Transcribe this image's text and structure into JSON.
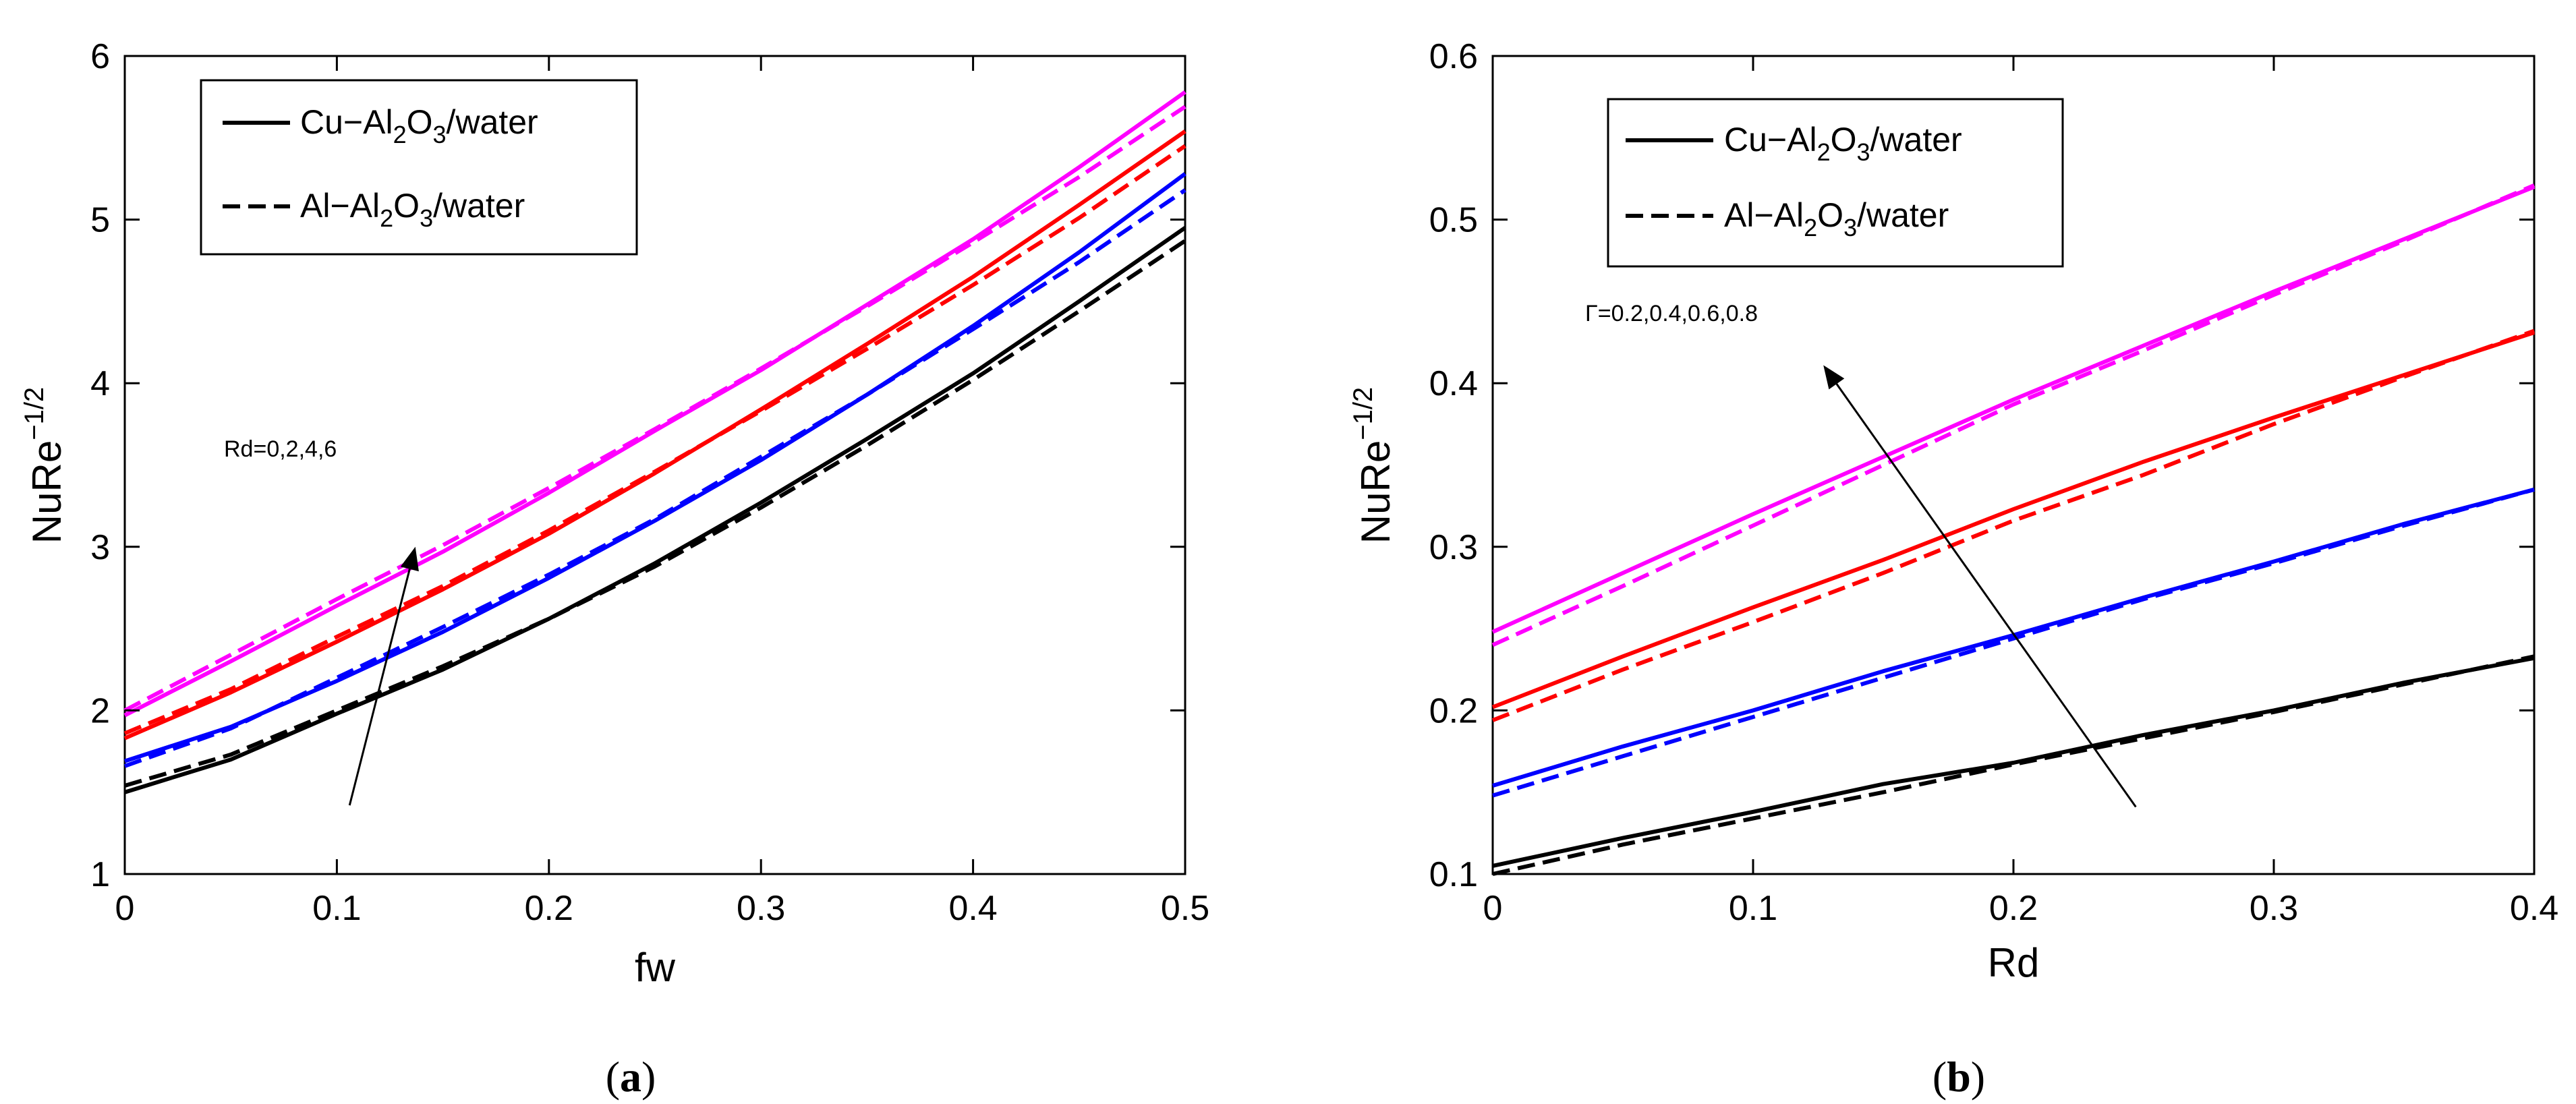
{
  "chart_data": [
    {
      "type": "line",
      "panel": "a",
      "panel_label": {
        "open": "(",
        "letter": "a",
        "close": ")"
      },
      "xlabel": "fw",
      "ylabel": {
        "base": "NuRe",
        "sup": "−1/2"
      },
      "xlim": [
        0,
        0.5
      ],
      "ylim": [
        1,
        6
      ],
      "xticks": [
        0,
        0.1,
        0.2,
        0.3,
        0.4,
        0.5
      ],
      "xtick_labels": [
        "0",
        "0.1",
        "0.2",
        "0.3",
        "0.4",
        "0.5"
      ],
      "yticks": [
        1,
        2,
        3,
        4,
        5,
        6
      ],
      "ytick_labels": [
        "1",
        "2",
        "3",
        "4",
        "5",
        "6"
      ],
      "legend": [
        {
          "style": "solid",
          "prefix": "Cu−Al",
          "sub1": "2",
          "mid": "O",
          "sub2": "3",
          "suffix": "/water"
        },
        {
          "style": "dashed",
          "prefix": "Al−Al",
          "sub1": "2",
          "mid": "O",
          "sub2": "3",
          "suffix": "/water"
        }
      ],
      "legend_position": "top-left",
      "annotation": {
        "text": "Rd=0,2,4,6",
        "arrow_from": [
          0.106,
          1.42
        ],
        "arrow_to": [
          0.137,
          3.0
        ]
      },
      "x": [
        0,
        0.05,
        0.1,
        0.15,
        0.2,
        0.25,
        0.3,
        0.35,
        0.4,
        0.45,
        0.5
      ],
      "series": [
        {
          "name": "Rd=0 Cu-Al2O3/water",
          "color": "#000000",
          "style": "solid",
          "values": [
            1.5,
            1.7,
            1.98,
            2.25,
            2.56,
            2.9,
            3.27,
            3.66,
            4.06,
            4.5,
            4.95
          ]
        },
        {
          "name": "Rd=0 Al-Al2O3/water",
          "color": "#000000",
          "style": "dashed",
          "values": [
            1.54,
            1.73,
            2.0,
            2.27,
            2.56,
            2.88,
            3.24,
            3.62,
            4.02,
            4.44,
            4.87
          ]
        },
        {
          "name": "Rd=2 Cu-Al2O3/water",
          "color": "#0000ff",
          "style": "solid",
          "values": [
            1.69,
            1.9,
            2.18,
            2.48,
            2.81,
            3.16,
            3.53,
            3.93,
            4.35,
            4.8,
            5.28
          ]
        },
        {
          "name": "Rd=2 Al-Al2O3/water",
          "color": "#0000ff",
          "style": "dashed",
          "values": [
            1.66,
            1.89,
            2.2,
            2.51,
            2.83,
            3.17,
            3.55,
            3.93,
            4.33,
            4.74,
            5.18
          ]
        },
        {
          "name": "Rd=4 Cu-Al2O3/water",
          "color": "#ff0000",
          "style": "solid",
          "values": [
            1.83,
            2.11,
            2.42,
            2.74,
            3.08,
            3.45,
            3.84,
            4.24,
            4.65,
            5.09,
            5.54
          ]
        },
        {
          "name": "Rd=4 Al-Al2O3/water",
          "color": "#ff0000",
          "style": "dashed",
          "values": [
            1.86,
            2.13,
            2.45,
            2.76,
            3.1,
            3.46,
            3.83,
            4.21,
            4.6,
            5.01,
            5.45
          ]
        },
        {
          "name": "Rd=6 Cu-Al2O3/water",
          "color": "#ff00ff",
          "style": "solid",
          "values": [
            1.97,
            2.3,
            2.64,
            2.97,
            3.33,
            3.71,
            4.08,
            4.48,
            4.88,
            5.32,
            5.78
          ]
        },
        {
          "name": "Rd=6 Al-Al2O3/water",
          "color": "#ff00ff",
          "style": "dashed",
          "values": [
            2.0,
            2.34,
            2.68,
            3.01,
            3.36,
            3.72,
            4.09,
            4.47,
            4.86,
            5.26,
            5.69
          ]
        }
      ]
    },
    {
      "type": "line",
      "panel": "b",
      "panel_label": {
        "open": "(",
        "letter": "b",
        "close": ")"
      },
      "xlabel": "Rd",
      "ylabel": {
        "base": "NuRe",
        "sup": "−1/2"
      },
      "xlim": [
        0,
        0.4
      ],
      "ylim": [
        0.1,
        0.6
      ],
      "xticks": [
        0,
        0.1,
        0.2,
        0.3,
        0.4
      ],
      "xtick_labels": [
        "0",
        "0.1",
        "0.2",
        "0.3",
        "0.4"
      ],
      "yticks": [
        0.1,
        0.2,
        0.3,
        0.4,
        0.5,
        0.6
      ],
      "ytick_labels": [
        "0.1",
        "0.2",
        "0.3",
        "0.4",
        "0.5",
        "0.6"
      ],
      "legend": [
        {
          "style": "solid",
          "prefix": "Cu−Al",
          "sub1": "2",
          "mid": "O",
          "sub2": "3",
          "suffix": "/water"
        },
        {
          "style": "dashed",
          "prefix": "Al−Al",
          "sub1": "2",
          "mid": "O",
          "sub2": "3",
          "suffix": "/water"
        }
      ],
      "legend_position": "top-left",
      "annotation": {
        "text": "Γ=0.2,0.4,0.6,0.8",
        "arrow_from": [
          0.247,
          0.141
        ],
        "arrow_to": [
          0.127,
          0.411
        ]
      },
      "x": [
        0,
        0.05,
        0.1,
        0.15,
        0.2,
        0.25,
        0.3,
        0.35,
        0.4
      ],
      "series": [
        {
          "name": "Γ=0.2 Cu-Al2O3/water",
          "color": "#000000",
          "style": "solid",
          "values": [
            0.105,
            0.122,
            0.138,
            0.155,
            0.168,
            0.185,
            0.2,
            0.217,
            0.232
          ]
        },
        {
          "name": "Γ=0.2 Al-Al2O3/water",
          "color": "#000000",
          "style": "dashed",
          "values": [
            0.1,
            0.118,
            0.134,
            0.15,
            0.167,
            0.183,
            0.199,
            0.216,
            0.233
          ]
        },
        {
          "name": "Γ=0.4 Cu-Al2O3/water",
          "color": "#0000ff",
          "style": "solid",
          "values": [
            0.154,
            0.178,
            0.2,
            0.224,
            0.246,
            0.269,
            0.291,
            0.314,
            0.335
          ]
        },
        {
          "name": "Γ=0.4 Al-Al2O3/water",
          "color": "#0000ff",
          "style": "dashed",
          "values": [
            0.148,
            0.172,
            0.196,
            0.22,
            0.244,
            0.268,
            0.29,
            0.313,
            0.335
          ]
        },
        {
          "name": "Γ=0.6 Cu-Al2O3/water",
          "color": "#ff0000",
          "style": "solid",
          "values": [
            0.202,
            0.233,
            0.263,
            0.292,
            0.323,
            0.352,
            0.379,
            0.405,
            0.431
          ]
        },
        {
          "name": "Γ=0.6 Al-Al2O3/water",
          "color": "#ff0000",
          "style": "dashed",
          "values": [
            0.194,
            0.225,
            0.254,
            0.284,
            0.316,
            0.344,
            0.375,
            0.404,
            0.432
          ]
        },
        {
          "name": "Γ=0.8 Cu-Al2O3/water",
          "color": "#ff00ff",
          "style": "solid",
          "values": [
            0.248,
            0.284,
            0.32,
            0.355,
            0.39,
            0.423,
            0.456,
            0.488,
            0.52
          ]
        },
        {
          "name": "Γ=0.8 Al-Al2O3/water",
          "color": "#ff00ff",
          "style": "dashed",
          "values": [
            0.24,
            0.276,
            0.313,
            0.35,
            0.387,
            0.42,
            0.454,
            0.487,
            0.521
          ]
        }
      ]
    }
  ]
}
